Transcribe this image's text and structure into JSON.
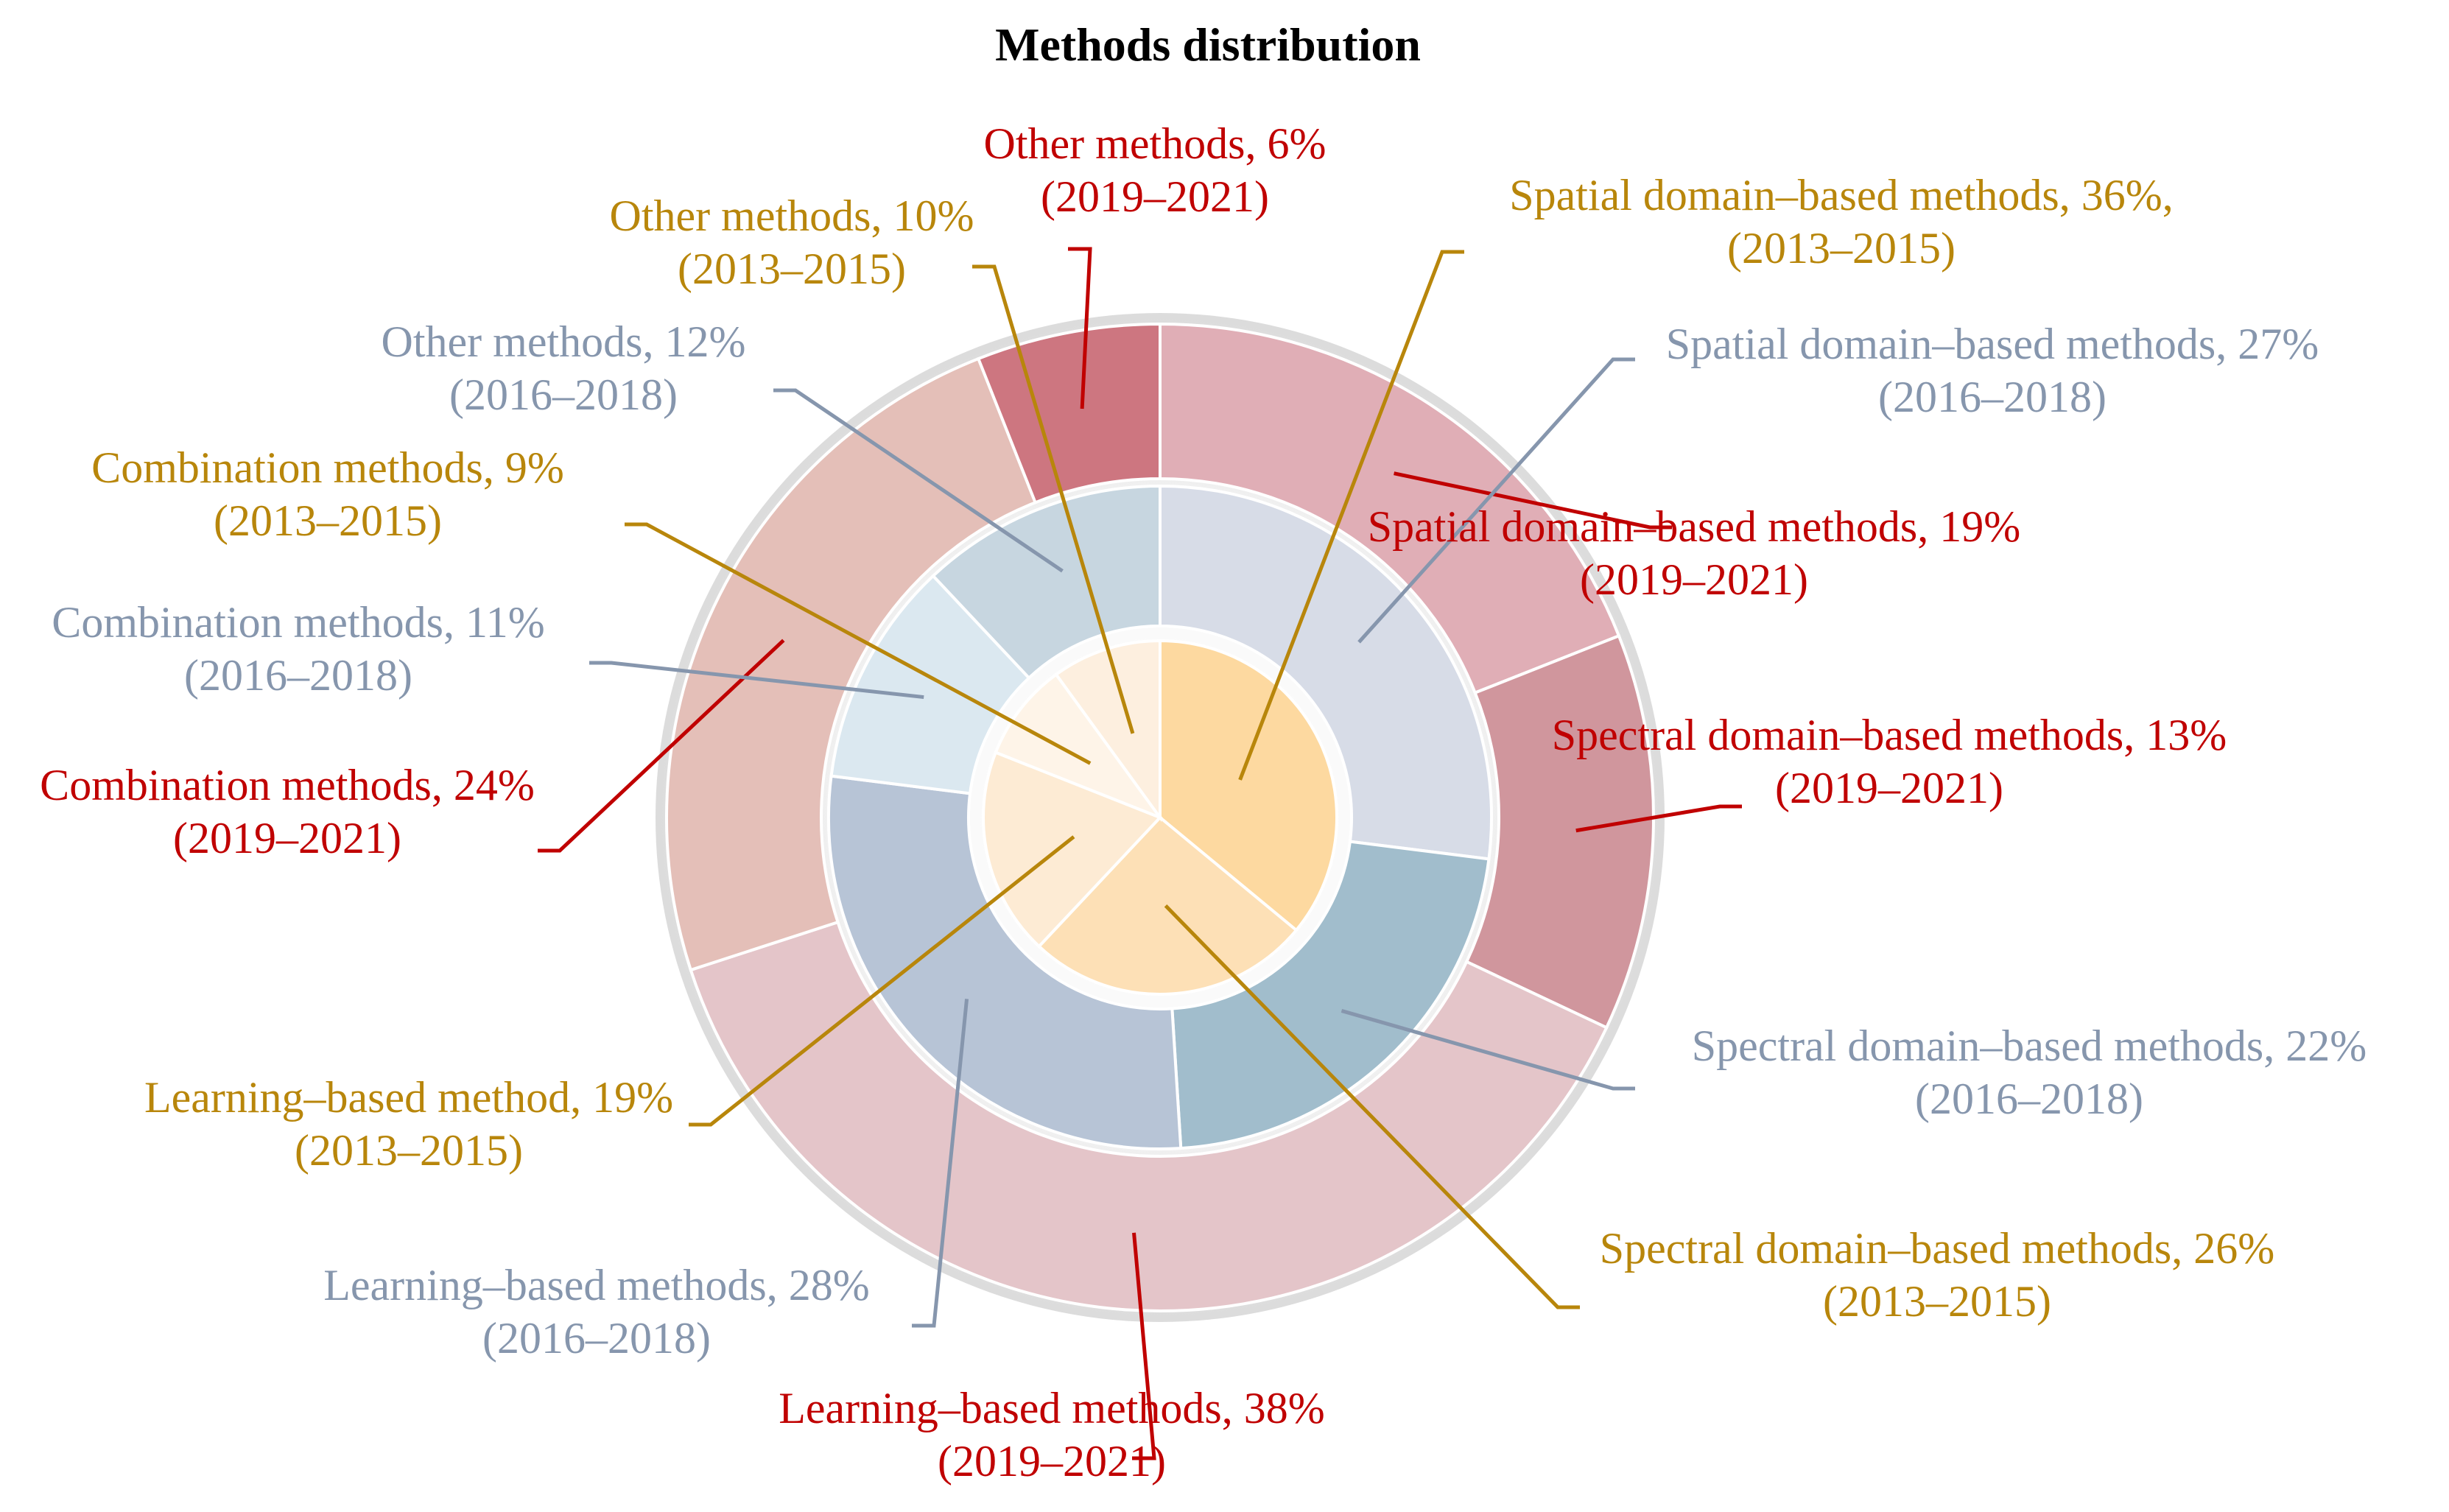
{
  "chart_data": {
    "type": "pie",
    "subtype": "nested-donut",
    "title": "Methods distribution",
    "categories": [
      "Spatial domain–based methods",
      "Spectral domain–based methods",
      "Learning–based methods",
      "Combination methods",
      "Other methods"
    ],
    "series": [
      {
        "name": "2013–2015",
        "ring": "inner",
        "color": "#b8860b",
        "values": [
          36,
          26,
          19,
          9,
          10
        ],
        "slice_colors": [
          "#fdd9a0",
          "#fde0b6",
          "#fdebd4",
          "#fef4e8",
          "#fdefdf"
        ],
        "labels": [
          [
            "Spatial domain–based methods, 36%,",
            "(2013–2015)"
          ],
          [
            "Spectral domain–based methods, 26%",
            "(2013–2015)"
          ],
          [
            "Learning–based method, 19%",
            "(2013–2015)"
          ],
          [
            "Combination methods, 9%",
            "(2013–2015)"
          ],
          [
            "Other methods, 10%",
            "(2013–2015)"
          ]
        ]
      },
      {
        "name": "2016–2018",
        "ring": "middle",
        "color": "#8696ad",
        "values": [
          27,
          22,
          28,
          11,
          12
        ],
        "slice_colors": [
          "#d7dce7",
          "#a1bdcc",
          "#b7c4d6",
          "#dbe8f0",
          "#c7d6e0"
        ],
        "labels": [
          [
            "Spatial domain–based methods, 27%",
            "(2016–2018)"
          ],
          [
            "Spectral domain–based methods, 22%",
            "(2016–2018)"
          ],
          [
            "Learning–based methods, 28%",
            "(2016–2018)"
          ],
          [
            "Combination methods, 11%",
            "(2016–2018)"
          ],
          [
            "Other methods, 12%",
            "(2016–2018)"
          ]
        ]
      },
      {
        "name": "2019–2021",
        "ring": "outer",
        "color": "#c00000",
        "values": [
          19,
          13,
          38,
          24,
          6
        ],
        "slice_colors": [
          "#e0aeb6",
          "#d0969d",
          "#e4c5c9",
          "#e4bfb8",
          "#cd7680"
        ],
        "labels": [
          [
            "Spatial domain–based methods, 19%",
            "(2019–2021)"
          ],
          [
            "Spectral domain–based methods, 13%",
            "(2019–2021)"
          ],
          [
            "Learning–based methods, 38%",
            "(2019–2021)"
          ],
          [
            "Combination methods, 24%",
            "(2019–2021)"
          ],
          [
            "Other methods, 6%",
            "(2019–2021)"
          ]
        ]
      }
    ]
  }
}
